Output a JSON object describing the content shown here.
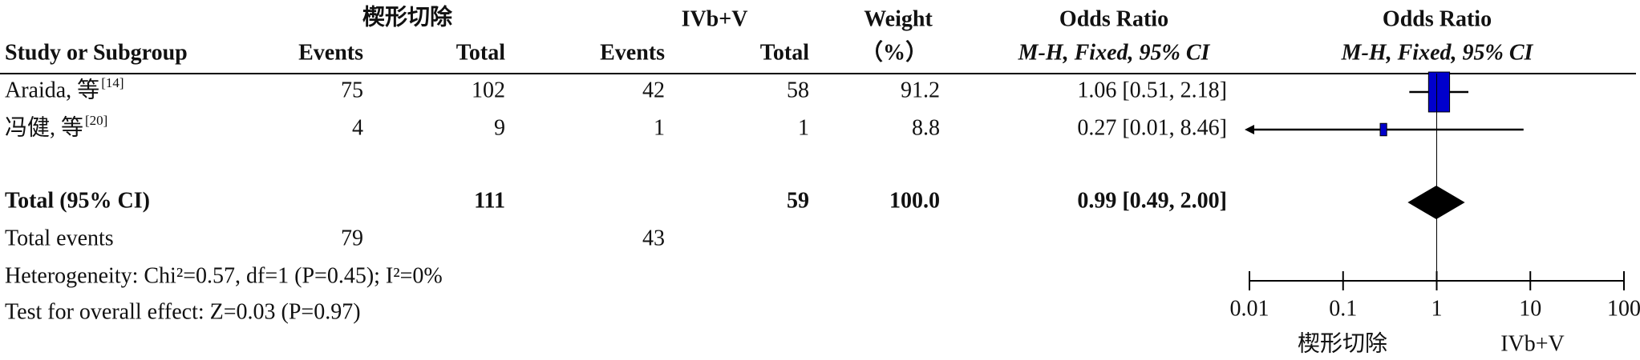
{
  "chart_data": {
    "type": "forest",
    "group_headers": [
      "楔形切除",
      "IVb+V"
    ],
    "columns": {
      "study": "Study or Subgroup",
      "events": "Events",
      "total": "Total",
      "weight": "Weight",
      "weight_unit": "（%）",
      "or": "Odds Ratio",
      "method": "M-H, Fixed, 95% CI"
    },
    "studies": [
      {
        "name": "Araida, 等",
        "ref": "[14]",
        "events1": 75,
        "total1": 102,
        "events2": 42,
        "total2": 58,
        "weight": 91.2,
        "or": 1.06,
        "lo": 0.51,
        "hi": 2.18,
        "ci_label": "1.06 [0.51, 2.18]"
      },
      {
        "name": "冯健, 等",
        "ref": "[20]",
        "events1": 4,
        "total1": 9,
        "events2": 1,
        "total2": 1,
        "weight": 8.8,
        "or": 0.27,
        "lo": 0.01,
        "hi": 8.46,
        "ci_label": "0.27 [0.01, 8.46]"
      }
    ],
    "total": {
      "name": "Total (95% CI)",
      "total1": 111,
      "total2": 59,
      "weight": {
        "value": 100,
        "label": "100.0"
      },
      "or": 0.99,
      "lo": 0.49,
      "hi": 2.0,
      "ci_label": "0.99 [0.49, 2.00]"
    },
    "total_events": {
      "label": "Total events",
      "events1": 79,
      "events2": 43
    },
    "heterogeneity": "Heterogeneity: Chi²=0.57, df=1 (P=0.45); I²=0%",
    "overall_effect": "Test for overall effect: Z=0.03 (P=0.97)",
    "xlim": [
      0.01,
      100
    ],
    "xticks": [
      0.01,
      0.1,
      1,
      10,
      100
    ],
    "log_x": true,
    "favours": [
      "楔形切除",
      "IVb+V"
    ],
    "box_color": "#0000cc",
    "diamond_color": "#000000"
  }
}
